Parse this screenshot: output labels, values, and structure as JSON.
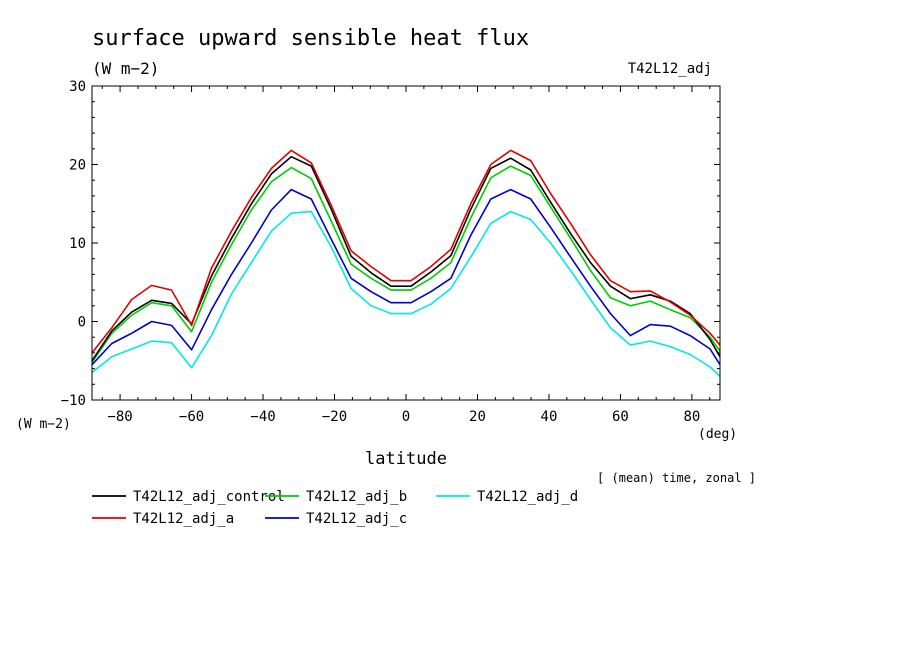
{
  "chart_data": {
    "type": "line",
    "title": "surface upward sensible heat flux",
    "units": "(W m−2)",
    "run_label": "T42L12_adj",
    "y_axis_unit": "(W m−2)",
    "x_axis_unit": "(deg)",
    "xlabel": "latitude",
    "aggregation_note": "[ (mean) time, zonal ]",
    "xlim": [
      -87.86,
      87.86
    ],
    "ylim": [
      -10,
      30
    ],
    "xticks": [
      -80,
      -60,
      -40,
      -20,
      0,
      20,
      40,
      60,
      80
    ],
    "yticks": [
      -10,
      0,
      10,
      20,
      30
    ],
    "xtick_labels": [
      "−80",
      "−60",
      "−40",
      "−20",
      "0",
      "20",
      "40",
      "60",
      "80"
    ],
    "ytick_labels": [
      "−10",
      "0",
      "10",
      "20",
      "30"
    ],
    "x": [
      -87.86,
      -82.31,
      -76.74,
      -71.16,
      -65.58,
      -60.0,
      -54.42,
      -48.84,
      -43.26,
      -37.67,
      -32.09,
      -26.51,
      -20.93,
      -15.35,
      -9.77,
      -4.19,
      1.4,
      6.98,
      12.56,
      18.14,
      23.72,
      29.3,
      34.88,
      40.47,
      46.05,
      51.63,
      57.21,
      62.79,
      68.37,
      73.95,
      79.53,
      85.1,
      87.86
    ],
    "series": [
      {
        "name": "T42L12_adj_control",
        "color": "#000000",
        "values": [
          -5.0,
          -1.2,
          1.2,
          2.7,
          2.3,
          -0.3,
          5.8,
          10.6,
          15.0,
          18.8,
          21.0,
          19.8,
          14.3,
          8.3,
          6.2,
          4.5,
          4.5,
          6.3,
          8.4,
          14.3,
          19.5,
          20.8,
          19.3,
          15.2,
          11.2,
          7.5,
          4.5,
          2.9,
          3.4,
          2.6,
          1.0,
          -2.3,
          -4.5
        ]
      },
      {
        "name": "T42L12_adj_a",
        "color": "#e00000",
        "values": [
          -4.0,
          -0.8,
          2.8,
          4.6,
          4.0,
          -0.5,
          6.8,
          11.5,
          15.8,
          19.5,
          21.8,
          20.2,
          14.8,
          9.0,
          7.0,
          5.2,
          5.2,
          7.0,
          9.2,
          15.0,
          20.0,
          21.8,
          20.5,
          16.3,
          12.5,
          8.5,
          5.2,
          3.8,
          3.9,
          2.5,
          0.8,
          -1.5,
          -3.0
        ]
      },
      {
        "name": "T42L12_adj_b",
        "color": "#00cc00",
        "values": [
          -5.2,
          -1.5,
          0.8,
          2.4,
          2.0,
          -1.3,
          5.0,
          9.8,
          14.2,
          17.8,
          19.6,
          18.2,
          12.8,
          7.3,
          5.5,
          4.0,
          4.0,
          5.5,
          7.5,
          13.2,
          18.3,
          19.8,
          18.6,
          14.6,
          10.6,
          6.5,
          3.0,
          2.0,
          2.6,
          1.5,
          0.5,
          -2.0,
          -3.8
        ]
      },
      {
        "name": "T42L12_adj_c",
        "color": "#0000cc",
        "values": [
          -5.5,
          -2.8,
          -1.5,
          0.0,
          -0.5,
          -3.6,
          1.5,
          6.0,
          10.0,
          14.2,
          16.8,
          15.6,
          10.5,
          5.5,
          3.8,
          2.4,
          2.4,
          3.8,
          5.5,
          11.0,
          15.6,
          16.8,
          15.6,
          12.0,
          8.2,
          4.5,
          1.0,
          -1.8,
          -0.4,
          -0.6,
          -1.8,
          -3.5,
          -5.5
        ]
      },
      {
        "name": "T42L12_adj_d",
        "color": "#00e8e8",
        "values": [
          -6.5,
          -4.5,
          -3.5,
          -2.5,
          -2.7,
          -5.9,
          -1.8,
          3.5,
          7.5,
          11.5,
          13.8,
          14.0,
          9.5,
          4.2,
          2.0,
          1.0,
          1.0,
          2.2,
          4.2,
          8.2,
          12.5,
          14.0,
          13.0,
          10.0,
          6.5,
          2.8,
          -0.8,
          -3.0,
          -2.5,
          -3.2,
          -4.2,
          -5.8,
          -7.0
        ]
      }
    ]
  }
}
